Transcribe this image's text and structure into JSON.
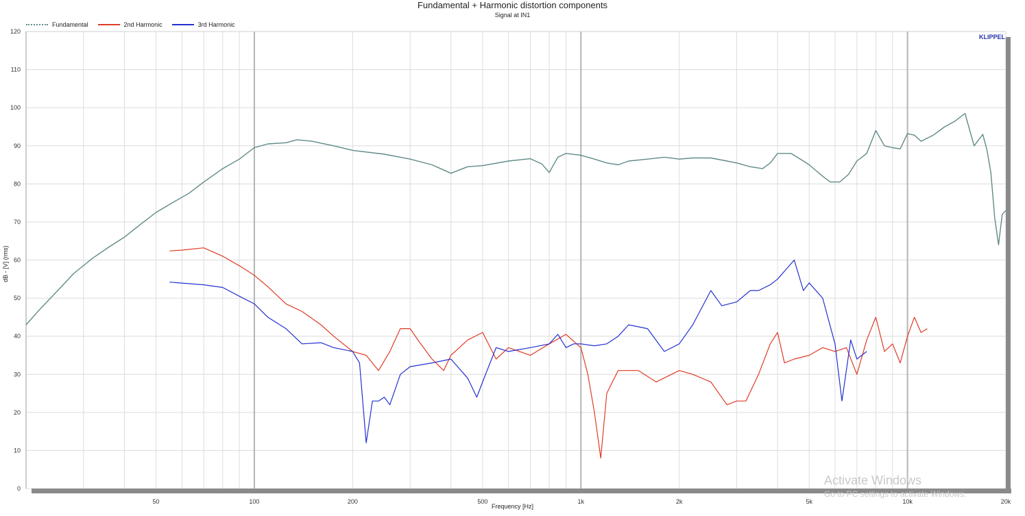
{
  "chart_data": {
    "type": "line",
    "title": "Fundamental + Harmonic distortion components",
    "subtitle": "Signal at IN1",
    "xlabel": "Frequency [Hz]",
    "ylabel": "dB - [V] (rms)",
    "xscale": "log",
    "xlim": [
      20,
      20000
    ],
    "ylim": [
      0,
      120
    ],
    "grid": true,
    "legend_position": "top-left",
    "brand": "KLIPPEL",
    "xticks": [
      {
        "value": 50,
        "label": "50"
      },
      {
        "value": 100,
        "label": "100"
      },
      {
        "value": 200,
        "label": "200"
      },
      {
        "value": 500,
        "label": "500"
      },
      {
        "value": 1000,
        "label": "1k"
      },
      {
        "value": 2000,
        "label": "2k"
      },
      {
        "value": 5000,
        "label": "5k"
      },
      {
        "value": 10000,
        "label": "10k"
      },
      {
        "value": 20000,
        "label": "20k"
      }
    ],
    "yticks": [
      0,
      10,
      20,
      30,
      40,
      50,
      60,
      70,
      80,
      90,
      100,
      110,
      120
    ],
    "series": [
      {
        "name": "Fundamental",
        "color": "#5f8a88",
        "points": [
          [
            20,
            43
          ],
          [
            22,
            47
          ],
          [
            25,
            52
          ],
          [
            28,
            56.5
          ],
          [
            32,
            60.5
          ],
          [
            36,
            63.5
          ],
          [
            40,
            66
          ],
          [
            45,
            69.5
          ],
          [
            50,
            72.5
          ],
          [
            56,
            75
          ],
          [
            63,
            77.5
          ],
          [
            70,
            80.5
          ],
          [
            80,
            84
          ],
          [
            90,
            86.5
          ],
          [
            100,
            89.5
          ],
          [
            110,
            90.5
          ],
          [
            125,
            90.8
          ],
          [
            135,
            91.6
          ],
          [
            150,
            91.2
          ],
          [
            175,
            90
          ],
          [
            200,
            88.8
          ],
          [
            250,
            87.8
          ],
          [
            300,
            86.5
          ],
          [
            350,
            85
          ],
          [
            400,
            82.8
          ],
          [
            450,
            84.5
          ],
          [
            500,
            84.8
          ],
          [
            600,
            86
          ],
          [
            700,
            86.6
          ],
          [
            760,
            85.2
          ],
          [
            800,
            83
          ],
          [
            850,
            87
          ],
          [
            900,
            88
          ],
          [
            1000,
            87.5
          ],
          [
            1100,
            86.5
          ],
          [
            1200,
            85.5
          ],
          [
            1300,
            85
          ],
          [
            1400,
            86
          ],
          [
            1600,
            86.5
          ],
          [
            1800,
            87
          ],
          [
            2000,
            86.5
          ],
          [
            2200,
            86.8
          ],
          [
            2500,
            86.8
          ],
          [
            2800,
            86
          ],
          [
            3000,
            85.5
          ],
          [
            3300,
            84.5
          ],
          [
            3600,
            84
          ],
          [
            3800,
            85.5
          ],
          [
            4000,
            88
          ],
          [
            4400,
            88
          ],
          [
            4800,
            86
          ],
          [
            5000,
            85
          ],
          [
            5500,
            82
          ],
          [
            5800,
            80.5
          ],
          [
            6200,
            80.5
          ],
          [
            6600,
            82.5
          ],
          [
            7000,
            86
          ],
          [
            7500,
            88
          ],
          [
            8000,
            94
          ],
          [
            8500,
            90
          ],
          [
            9000,
            89.5
          ],
          [
            9500,
            89.2
          ],
          [
            10000,
            93.2
          ],
          [
            10500,
            92.8
          ],
          [
            11000,
            91.2
          ],
          [
            12000,
            92.8
          ],
          [
            13000,
            95
          ],
          [
            14000,
            96.5
          ],
          [
            15000,
            98.5
          ],
          [
            16000,
            90
          ],
          [
            17000,
            93
          ],
          [
            17500,
            89
          ],
          [
            18000,
            83
          ],
          [
            18500,
            71
          ],
          [
            19000,
            64
          ],
          [
            19500,
            72
          ],
          [
            20000,
            73
          ]
        ]
      },
      {
        "name": "2nd Harmonic",
        "color": "#e03a24",
        "points": [
          [
            55,
            62.4
          ],
          [
            60,
            62.6
          ],
          [
            70,
            63.2
          ],
          [
            80,
            61
          ],
          [
            90,
            58.5
          ],
          [
            100,
            56
          ],
          [
            110,
            53
          ],
          [
            125,
            48.5
          ],
          [
            140,
            46.5
          ],
          [
            160,
            43
          ],
          [
            175,
            40
          ],
          [
            200,
            36
          ],
          [
            220,
            35
          ],
          [
            240,
            31
          ],
          [
            260,
            36
          ],
          [
            280,
            42
          ],
          [
            300,
            42
          ],
          [
            320,
            38.5
          ],
          [
            350,
            34
          ],
          [
            380,
            31
          ],
          [
            400,
            35
          ],
          [
            450,
            39
          ],
          [
            500,
            41
          ],
          [
            550,
            34
          ],
          [
            600,
            37
          ],
          [
            700,
            35
          ],
          [
            800,
            38
          ],
          [
            900,
            40.5
          ],
          [
            1000,
            37
          ],
          [
            1050,
            30
          ],
          [
            1100,
            20
          ],
          [
            1150,
            8
          ],
          [
            1200,
            25
          ],
          [
            1300,
            31
          ],
          [
            1500,
            31
          ],
          [
            1700,
            28
          ],
          [
            2000,
            31
          ],
          [
            2200,
            30
          ],
          [
            2500,
            28
          ],
          [
            2800,
            22
          ],
          [
            3000,
            23
          ],
          [
            3200,
            23
          ],
          [
            3500,
            30
          ],
          [
            3800,
            38
          ],
          [
            4000,
            41
          ],
          [
            4200,
            33
          ],
          [
            4500,
            34
          ],
          [
            5000,
            35
          ],
          [
            5500,
            37
          ],
          [
            6000,
            36
          ],
          [
            6500,
            37
          ],
          [
            7000,
            30
          ],
          [
            7500,
            39
          ],
          [
            8000,
            45
          ],
          [
            8500,
            36
          ],
          [
            9000,
            38
          ],
          [
            9500,
            33
          ],
          [
            10000,
            40
          ],
          [
            10500,
            45
          ],
          [
            11000,
            41
          ],
          [
            11500,
            42
          ]
        ]
      },
      {
        "name": "3rd Harmonic",
        "color": "#2230d0",
        "points": [
          [
            55,
            54.2
          ],
          [
            70,
            53.5
          ],
          [
            80,
            52.8
          ],
          [
            90,
            50.5
          ],
          [
            100,
            48.5
          ],
          [
            110,
            45
          ],
          [
            125,
            42
          ],
          [
            140,
            38
          ],
          [
            160,
            38.3
          ],
          [
            175,
            37
          ],
          [
            200,
            36
          ],
          [
            210,
            33
          ],
          [
            220,
            12
          ],
          [
            230,
            23
          ],
          [
            240,
            23
          ],
          [
            250,
            24
          ],
          [
            260,
            22
          ],
          [
            280,
            30
          ],
          [
            300,
            32
          ],
          [
            350,
            33
          ],
          [
            400,
            34
          ],
          [
            450,
            29
          ],
          [
            480,
            24
          ],
          [
            500,
            28
          ],
          [
            550,
            37
          ],
          [
            600,
            36
          ],
          [
            700,
            37
          ],
          [
            800,
            38
          ],
          [
            850,
            40.5
          ],
          [
            900,
            37
          ],
          [
            950,
            38
          ],
          [
            1000,
            38
          ],
          [
            1100,
            37.5
          ],
          [
            1200,
            38
          ],
          [
            1300,
            40
          ],
          [
            1400,
            43
          ],
          [
            1600,
            42
          ],
          [
            1800,
            36
          ],
          [
            2000,
            38
          ],
          [
            2200,
            43
          ],
          [
            2500,
            52
          ],
          [
            2700,
            48
          ],
          [
            3000,
            49
          ],
          [
            3300,
            52
          ],
          [
            3500,
            52
          ],
          [
            3800,
            53.5
          ],
          [
            4000,
            55
          ],
          [
            4500,
            60
          ],
          [
            4800,
            52
          ],
          [
            5000,
            54
          ],
          [
            5500,
            50
          ],
          [
            6000,
            38
          ],
          [
            6300,
            23
          ],
          [
            6700,
            39
          ],
          [
            7000,
            34
          ],
          [
            7500,
            36
          ]
        ]
      }
    ]
  },
  "watermark": {
    "line1": "Activate Windows",
    "line2": "Go to PC settings to activate Windows."
  }
}
